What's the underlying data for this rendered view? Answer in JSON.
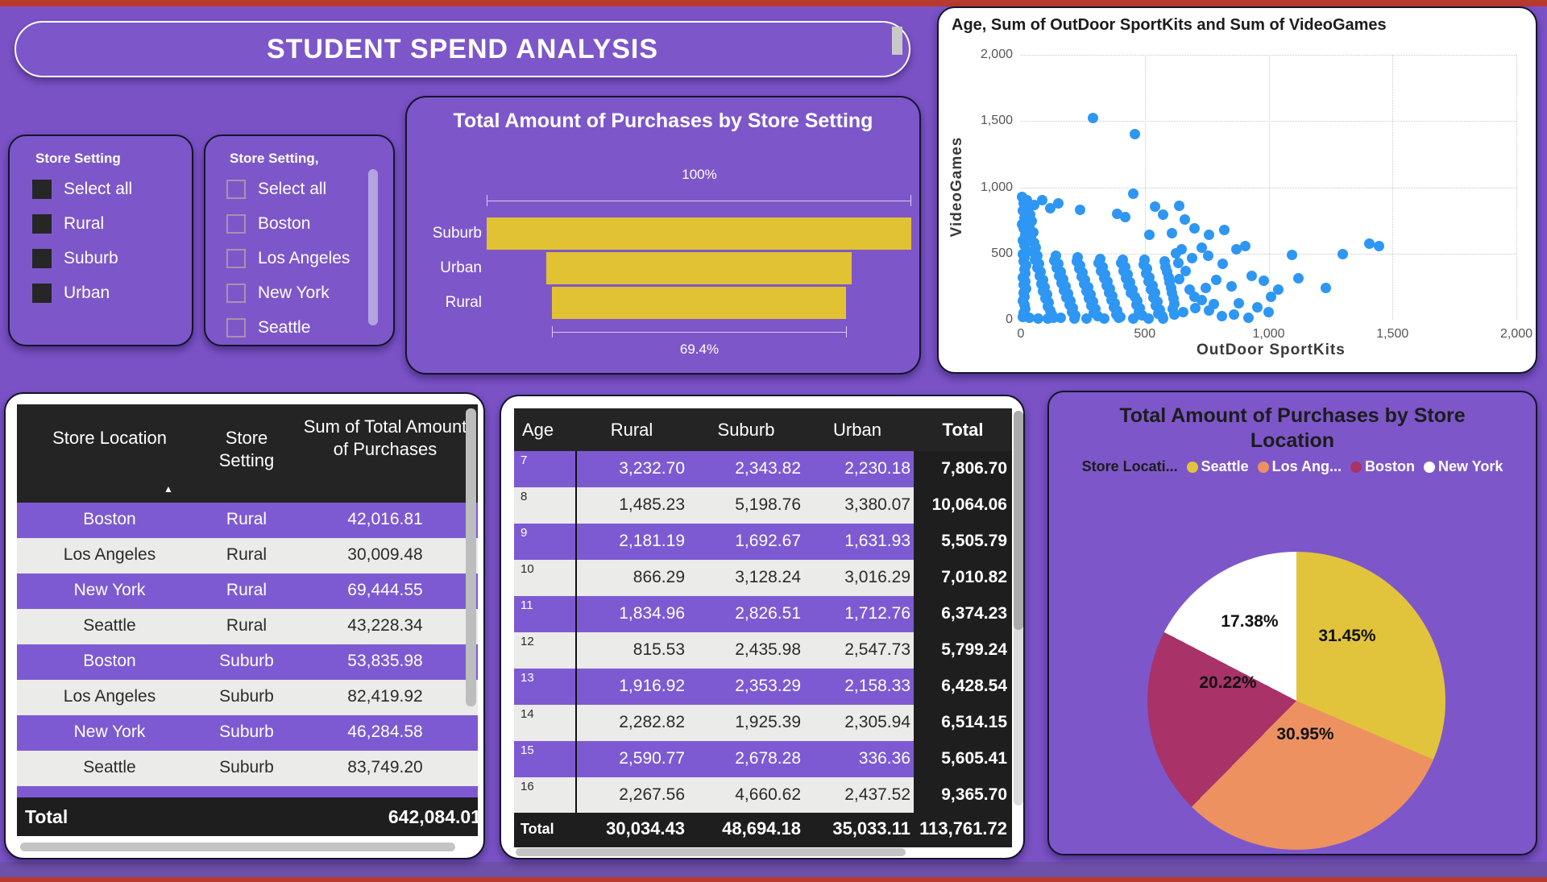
{
  "page": {
    "banner": "STUDENT SPEND ANALYSIS"
  },
  "colors": {
    "background": "#7A52C6",
    "card": "#7D57C9",
    "accent_yellow": "#E1C233",
    "scatter_blue": "#2E96F3",
    "row_purple": "#7D5AD2",
    "row_light": "#EBEBE9",
    "header_black": "#242424",
    "edge_red": "#B8392E",
    "pie_seattle": "#E2C43C",
    "pie_los_angeles": "#EE9161",
    "pie_boston": "#A93268",
    "pie_new_york": "#FFFFFF"
  },
  "slicers": {
    "setting": {
      "title": "Store Setting",
      "items": [
        {
          "label": "Select all",
          "checked": true
        },
        {
          "label": "Rural",
          "checked": true
        },
        {
          "label": "Suburb",
          "checked": true
        },
        {
          "label": "Urban",
          "checked": true
        }
      ]
    },
    "location": {
      "title": "Store Setting,",
      "items": [
        {
          "label": "Select all",
          "checked": false
        },
        {
          "label": "Boston",
          "checked": false
        },
        {
          "label": "Los Angeles",
          "checked": false
        },
        {
          "label": "New York",
          "checked": false
        },
        {
          "label": "Seattle",
          "checked": false
        }
      ]
    }
  },
  "chart_data": [
    {
      "type": "bar",
      "variant": "funnel",
      "title": "Total Amount of Purchases by Store Setting",
      "categories": [
        "Suburb",
        "Urban",
        "Rural"
      ],
      "values_pct": [
        100,
        71.8,
        69.4
      ],
      "top_annotation": "100%",
      "bottom_annotation": "69.4%",
      "bar_color": "#E1C233"
    },
    {
      "type": "scatter",
      "title": "Age, Sum of OutDoor SportKits and Sum of VideoGames",
      "xlabel": "OutDoor SportKits",
      "ylabel": "VideoGames",
      "xlim": [
        0,
        2000
      ],
      "ylim": [
        0,
        2000
      ],
      "xticks": [
        "0",
        "500",
        "1,000",
        "1,500",
        "2,000"
      ],
      "yticks": [
        "0",
        "500",
        "1,000",
        "1,500",
        "2,000"
      ],
      "grid": true,
      "point_color": "#2E96F3",
      "points": [
        [
          5,
          930
        ],
        [
          10,
          878
        ],
        [
          8,
          822
        ],
        [
          15,
          768
        ],
        [
          6,
          722
        ],
        [
          12,
          690
        ],
        [
          18,
          641
        ],
        [
          9,
          601
        ],
        [
          14,
          562
        ],
        [
          20,
          528
        ],
        [
          7,
          498
        ],
        [
          16,
          471
        ],
        [
          11,
          440
        ],
        [
          22,
          408
        ],
        [
          13,
          381
        ],
        [
          19,
          352
        ],
        [
          8,
          318
        ],
        [
          17,
          291
        ],
        [
          10,
          262
        ],
        [
          21,
          233
        ],
        [
          12,
          203
        ],
        [
          16,
          172
        ],
        [
          9,
          141
        ],
        [
          14,
          112
        ],
        [
          18,
          82
        ],
        [
          11,
          52
        ],
        [
          7,
          22
        ],
        [
          25,
          905
        ],
        [
          30,
          848
        ],
        [
          38,
          791
        ],
        [
          45,
          742
        ],
        [
          35,
          701
        ],
        [
          50,
          662
        ],
        [
          42,
          621
        ],
        [
          55,
          582
        ],
        [
          60,
          545
        ],
        [
          48,
          512
        ],
        [
          65,
          481
        ],
        [
          58,
          452
        ],
        [
          72,
          421
        ],
        [
          66,
          392
        ],
        [
          80,
          361
        ],
        [
          75,
          332
        ],
        [
          88,
          302
        ],
        [
          82,
          272
        ],
        [
          95,
          246
        ],
        [
          90,
          216
        ],
        [
          105,
          191
        ],
        [
          98,
          161
        ],
        [
          112,
          132
        ],
        [
          108,
          101
        ],
        [
          118,
          71
        ],
        [
          125,
          42
        ],
        [
          130,
          16
        ],
        [
          140,
          481
        ],
        [
          135,
          446
        ],
        [
          150,
          421
        ],
        [
          145,
          391
        ],
        [
          160,
          362
        ],
        [
          155,
          331
        ],
        [
          170,
          306
        ],
        [
          165,
          276
        ],
        [
          180,
          251
        ],
        [
          175,
          221
        ],
        [
          190,
          196
        ],
        [
          185,
          166
        ],
        [
          200,
          141
        ],
        [
          195,
          111
        ],
        [
          210,
          86
        ],
        [
          205,
          56
        ],
        [
          220,
          31
        ],
        [
          230,
          471
        ],
        [
          225,
          441
        ],
        [
          240,
          411
        ],
        [
          235,
          386
        ],
        [
          250,
          356
        ],
        [
          245,
          326
        ],
        [
          260,
          301
        ],
        [
          255,
          271
        ],
        [
          270,
          246
        ],
        [
          265,
          216
        ],
        [
          280,
          191
        ],
        [
          275,
          161
        ],
        [
          290,
          136
        ],
        [
          285,
          106
        ],
        [
          300,
          81
        ],
        [
          295,
          51
        ],
        [
          310,
          26
        ],
        [
          320,
          461
        ],
        [
          315,
          431
        ],
        [
          330,
          401
        ],
        [
          325,
          371
        ],
        [
          340,
          346
        ],
        [
          335,
          316
        ],
        [
          350,
          291
        ],
        [
          345,
          261
        ],
        [
          360,
          236
        ],
        [
          355,
          206
        ],
        [
          370,
          181
        ],
        [
          365,
          151
        ],
        [
          380,
          126
        ],
        [
          375,
          96
        ],
        [
          390,
          71
        ],
        [
          385,
          41
        ],
        [
          400,
          21
        ],
        [
          410,
          456
        ],
        [
          405,
          426
        ],
        [
          420,
          396
        ],
        [
          415,
          366
        ],
        [
          430,
          341
        ],
        [
          425,
          311
        ],
        [
          440,
          286
        ],
        [
          435,
          256
        ],
        [
          450,
          231
        ],
        [
          445,
          201
        ],
        [
          460,
          171
        ],
        [
          470,
          141
        ],
        [
          465,
          111
        ],
        [
          480,
          86
        ],
        [
          475,
          56
        ],
        [
          490,
          31
        ],
        [
          500,
          451
        ],
        [
          495,
          416
        ],
        [
          510,
          386
        ],
        [
          505,
          351
        ],
        [
          520,
          321
        ],
        [
          515,
          291
        ],
        [
          530,
          261
        ],
        [
          525,
          231
        ],
        [
          540,
          201
        ],
        [
          535,
          166
        ],
        [
          550,
          136
        ],
        [
          545,
          106
        ],
        [
          560,
          76
        ],
        [
          555,
          46
        ],
        [
          570,
          26
        ],
        [
          580,
          441
        ],
        [
          585,
          401
        ],
        [
          590,
          361
        ],
        [
          595,
          321
        ],
        [
          600,
          281
        ],
        [
          605,
          241
        ],
        [
          610,
          201
        ],
        [
          615,
          161
        ],
        [
          620,
          121
        ],
        [
          612,
          81
        ],
        [
          618,
          41
        ],
        [
          35,
          16
        ],
        [
          70,
          11
        ],
        [
          110,
          9
        ],
        [
          160,
          13
        ],
        [
          215,
          7
        ],
        [
          265,
          11
        ],
        [
          335,
          9
        ],
        [
          395,
          13
        ],
        [
          455,
          7
        ],
        [
          515,
          11
        ],
        [
          575,
          9
        ],
        [
          290,
          1525
        ],
        [
          460,
          1400
        ],
        [
          455,
          950
        ],
        [
          640,
          858
        ],
        [
          540,
          852
        ],
        [
          660,
          758
        ],
        [
          700,
          688
        ],
        [
          150,
          878
        ],
        [
          85,
          903
        ],
        [
          55,
          868
        ],
        [
          120,
          843
        ],
        [
          240,
          828
        ],
        [
          390,
          798
        ],
        [
          420,
          773
        ],
        [
          575,
          793
        ],
        [
          520,
          641
        ],
        [
          610,
          652
        ],
        [
          760,
          640
        ],
        [
          820,
          678
        ],
        [
          870,
          532
        ],
        [
          905,
          558
        ],
        [
          1095,
          487
        ],
        [
          1300,
          493
        ],
        [
          1405,
          573
        ],
        [
          1445,
          558
        ],
        [
          1120,
          312
        ],
        [
          1230,
          243
        ],
        [
          1010,
          176
        ],
        [
          930,
          333
        ],
        [
          850,
          254
        ],
        [
          880,
          123
        ],
        [
          955,
          93
        ],
        [
          790,
          303
        ],
        [
          815,
          423
        ],
        [
          755,
          483
        ],
        [
          730,
          543
        ],
        [
          690,
          468
        ],
        [
          650,
          531
        ],
        [
          625,
          503
        ],
        [
          980,
          298
        ],
        [
          1040,
          228
        ],
        [
          700,
          173
        ],
        [
          745,
          238
        ],
        [
          780,
          118
        ],
        [
          705,
          88
        ],
        [
          655,
          58
        ],
        [
          810,
          28
        ],
        [
          860,
          38
        ],
        [
          920,
          13
        ],
        [
          1000,
          60
        ],
        [
          760,
          70
        ],
        [
          730,
          150
        ],
        [
          680,
          230
        ],
        [
          640,
          310
        ],
        [
          665,
          370
        ],
        [
          635,
          430
        ]
      ]
    },
    {
      "type": "pie",
      "title": "Total Amount of Purchases by Store Location",
      "legend_title": "Store Locati...",
      "legend_position": "top",
      "slices": [
        {
          "legend_label": "Seattle",
          "pct": 31.45,
          "color": "#E2C43C"
        },
        {
          "legend_label": "Los Ang...",
          "pct": 30.95,
          "color": "#EE9161"
        },
        {
          "legend_label": "Boston",
          "pct": 20.22,
          "color": "#A93268"
        },
        {
          "legend_label": "New York",
          "pct": 17.38,
          "color": "#FFFFFF"
        }
      ]
    },
    {
      "type": "table",
      "headers": [
        "Store Location",
        "Store Setting",
        "Sum of Total Amount of Purchases"
      ],
      "sort_indicator": "▲",
      "rows": [
        [
          "Boston",
          "Rural",
          "42,016.81"
        ],
        [
          "Los Angeles",
          "Rural",
          "30,009.48"
        ],
        [
          "New York",
          "Rural",
          "69,444.55"
        ],
        [
          "Seattle",
          "Rural",
          "43,228.34"
        ],
        [
          "Boston",
          "Suburb",
          "53,835.98"
        ],
        [
          "Los Angeles",
          "Suburb",
          "82,419.92"
        ],
        [
          "New York",
          "Suburb",
          "46,284.58"
        ],
        [
          "Seattle",
          "Suburb",
          "83,749.20"
        ]
      ],
      "total_label": "Total",
      "total_value": "642,084.01"
    },
    {
      "type": "table",
      "headers": [
        "Age",
        "Rural",
        "Suburb",
        "Urban",
        "Total"
      ],
      "rows": [
        [
          "7",
          "3,232.70",
          "2,343.82",
          "2,230.18",
          "7,806.70"
        ],
        [
          "8",
          "1,485.23",
          "5,198.76",
          "3,380.07",
          "10,064.06"
        ],
        [
          "9",
          "2,181.19",
          "1,692.67",
          "1,631.93",
          "5,505.79"
        ],
        [
          "10",
          "866.29",
          "3,128.24",
          "3,016.29",
          "7,010.82"
        ],
        [
          "11",
          "1,834.96",
          "2,826.51",
          "1,712.76",
          "6,374.23"
        ],
        [
          "12",
          "815.53",
          "2,435.98",
          "2,547.73",
          "5,799.24"
        ],
        [
          "13",
          "1,916.92",
          "2,353.29",
          "2,158.33",
          "6,428.54"
        ],
        [
          "14",
          "2,282.82",
          "1,925.39",
          "2,305.94",
          "6,514.15"
        ],
        [
          "15",
          "2,590.77",
          "2,678.28",
          "336.36",
          "5,605.41"
        ],
        [
          "16",
          "2,267.56",
          "4,660.62",
          "2,437.52",
          "9,365.70"
        ]
      ],
      "totals": [
        "Total",
        "30,034.43",
        "48,694.18",
        "35,033.11",
        "113,761.72"
      ]
    }
  ]
}
